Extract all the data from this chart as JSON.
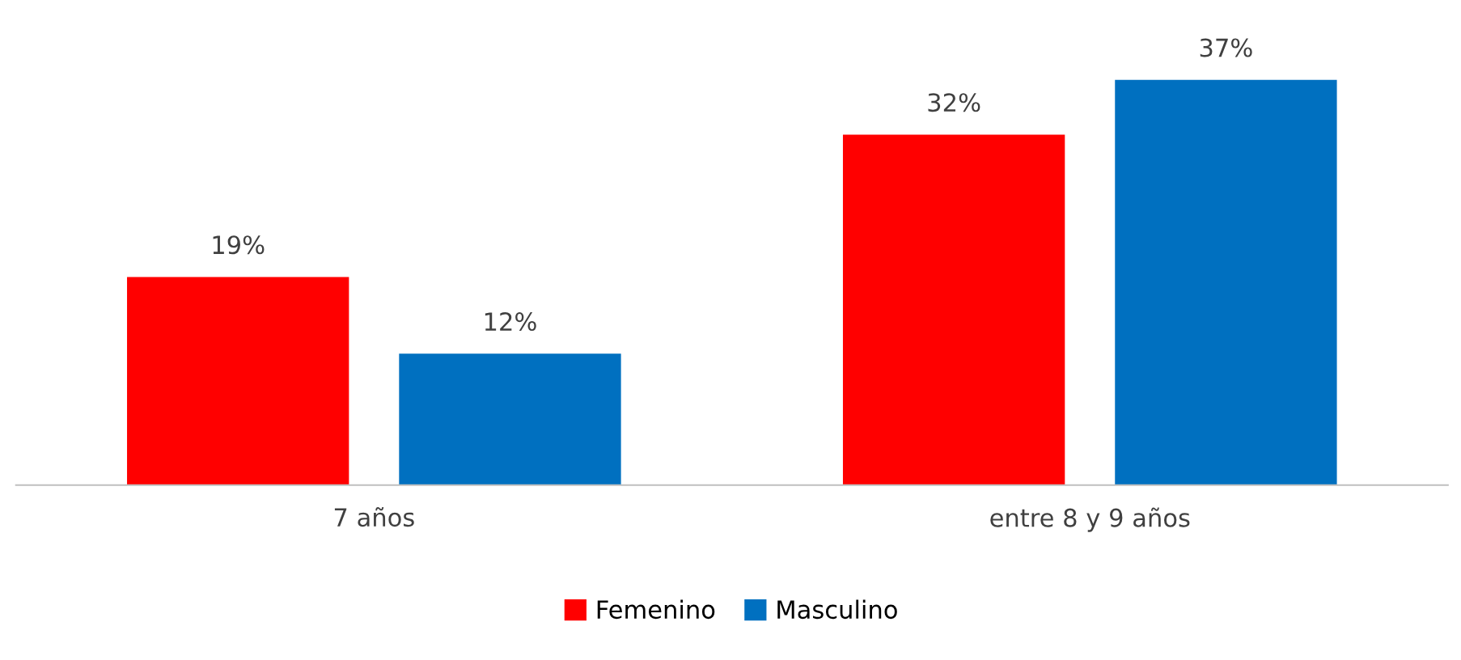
{
  "chart_data": {
    "type": "bar",
    "categories": [
      "7 años",
      "entre 8 y 9 años"
    ],
    "series": [
      {
        "name": "Femenino",
        "color": "#ff0000",
        "values": [
          19,
          32
        ],
        "value_labels": [
          "19%",
          "32%"
        ]
      },
      {
        "name": "Masculino",
        "color": "#0070c0",
        "values": [
          12,
          37
        ],
        "value_labels": [
          "12%",
          "37%"
        ]
      }
    ],
    "legend": "bottom"
  }
}
